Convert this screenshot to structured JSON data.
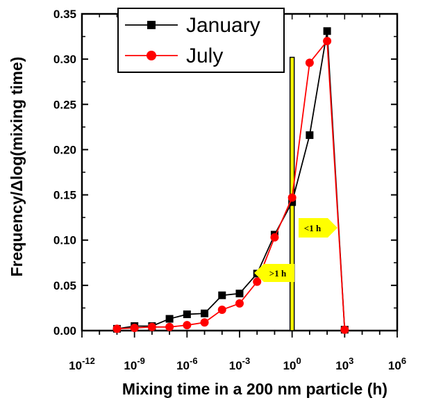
{
  "chart_data": {
    "type": "line",
    "xlabel": "Mixing time in a 200 nm particle (h)",
    "ylabel": "Frequency/Δlog(mixing time)",
    "x_scale": "log",
    "xlim": [
      1e-12,
      1000000.0
    ],
    "ylim": [
      0,
      0.35
    ],
    "x_ticks": [
      {
        "base": "10",
        "exp": "-12"
      },
      {
        "base": "10",
        "exp": "-9"
      },
      {
        "base": "10",
        "exp": "-6"
      },
      {
        "base": "10",
        "exp": "-3"
      },
      {
        "base": "10",
        "exp": "0"
      },
      {
        "base": "10",
        "exp": "3"
      },
      {
        "base": "10",
        "exp": "6"
      }
    ],
    "y_ticks": [
      "0.00",
      "0.05",
      "0.10",
      "0.15",
      "0.20",
      "0.25",
      "0.30",
      "0.35"
    ],
    "legend_position": "top-left",
    "series": [
      {
        "name": "January",
        "color": "#000000",
        "marker": "square",
        "x": [
          1e-10,
          1e-09,
          1e-08,
          1e-07,
          1e-06,
          1e-05,
          0.0001,
          0.001,
          0.01,
          0.1,
          1.0,
          10.0,
          100.0,
          1000.0
        ],
        "y": [
          0.002,
          0.005,
          0.005,
          0.013,
          0.018,
          0.019,
          0.039,
          0.041,
          0.063,
          0.106,
          0.142,
          0.216,
          0.331,
          0.001
        ]
      },
      {
        "name": "July",
        "color": "#ff0000",
        "marker": "circle",
        "x": [
          1e-10,
          1e-09,
          1e-08,
          1e-07,
          1e-06,
          1e-05,
          0.0001,
          0.001,
          0.01,
          0.1,
          1.0,
          10.0,
          100.0,
          1000.0
        ],
        "y": [
          0.002,
          0.003,
          0.004,
          0.004,
          0.006,
          0.009,
          0.023,
          0.03,
          0.054,
          0.103,
          0.147,
          0.296,
          0.32,
          0.001
        ]
      }
    ],
    "annotations": [
      {
        "text": ">1 h",
        "direction": "left",
        "color": "#ffff00"
      },
      {
        "text": "<1 h",
        "direction": "right",
        "color": "#ffff00"
      }
    ],
    "reference_line": {
      "x": 1,
      "color": "#ffff00"
    }
  }
}
